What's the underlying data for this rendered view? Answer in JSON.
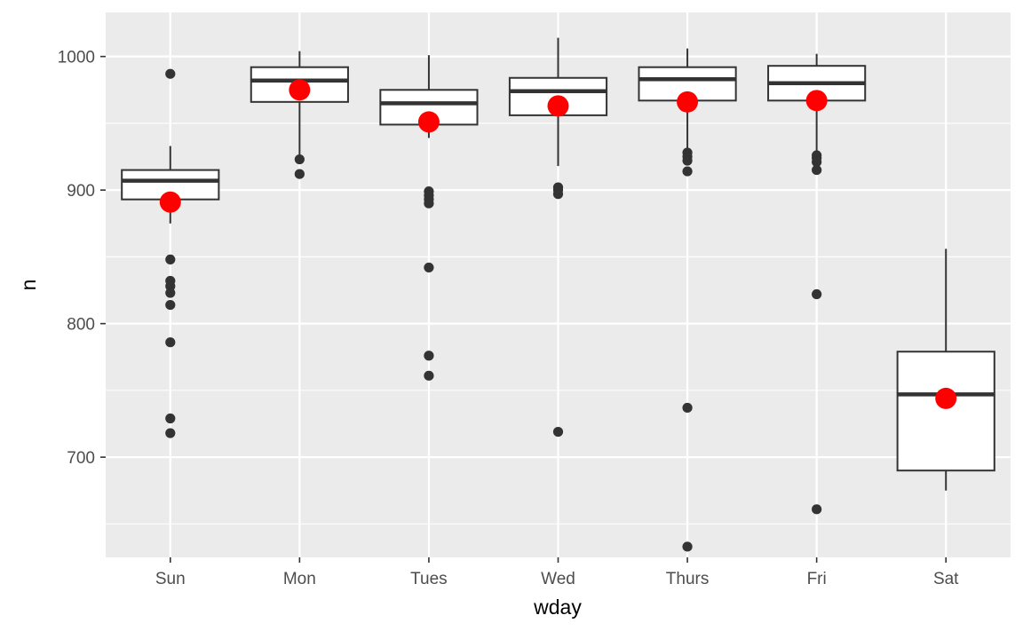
{
  "chart_data": {
    "type": "box",
    "xlabel": "wday",
    "ylabel": "n",
    "ylim": [
      625,
      1033
    ],
    "y_ticks": [
      700,
      800,
      900,
      1000
    ],
    "y_minor_ticks": [
      650,
      750,
      850,
      950
    ],
    "categories": [
      "Sun",
      "Mon",
      "Tues",
      "Wed",
      "Thurs",
      "Fri",
      "Sat"
    ],
    "boxes": [
      {
        "category": "Sun",
        "whisker_low": 875,
        "q1": 893,
        "median": 907,
        "q3": 915,
        "whisker_high": 933,
        "mean": 891,
        "outliers": [
          987,
          848,
          832,
          828,
          823,
          814,
          786,
          729,
          718
        ]
      },
      {
        "category": "Mon",
        "whisker_low": 925,
        "q1": 966,
        "median": 982,
        "q3": 992,
        "whisker_high": 1004,
        "mean": 975,
        "outliers": [
          923,
          912
        ]
      },
      {
        "category": "Tues",
        "whisker_low": 939,
        "q1": 949,
        "median": 965,
        "q3": 975,
        "whisker_high": 1001,
        "mean": 951,
        "outliers": [
          899,
          896,
          893,
          890,
          842,
          776,
          761
        ]
      },
      {
        "category": "Wed",
        "whisker_low": 918,
        "q1": 956,
        "median": 974,
        "q3": 984,
        "whisker_high": 1014,
        "mean": 963,
        "outliers": [
          902,
          900,
          897,
          719
        ]
      },
      {
        "category": "Thurs",
        "whisker_low": 929,
        "q1": 967,
        "median": 983,
        "q3": 992,
        "whisker_high": 1006,
        "mean": 966,
        "outliers": [
          928,
          925,
          922,
          914,
          737,
          633
        ]
      },
      {
        "category": "Fri",
        "whisker_low": 929,
        "q1": 967,
        "median": 980,
        "q3": 993,
        "whisker_high": 1002,
        "mean": 967,
        "outliers": [
          926,
          924,
          921,
          915,
          822,
          661
        ]
      },
      {
        "category": "Sat",
        "whisker_low": 675,
        "q1": 690,
        "median": 747,
        "q3": 779,
        "whisker_high": 856,
        "mean": 744,
        "outliers": []
      }
    ],
    "colors": {
      "panel": "#ebebeb",
      "grid": "#ffffff",
      "box_fill": "#ffffff",
      "box_line": "#333333",
      "outlier": "#333333",
      "mean_point": "#ff0000"
    },
    "grid": true,
    "legend": "none"
  }
}
